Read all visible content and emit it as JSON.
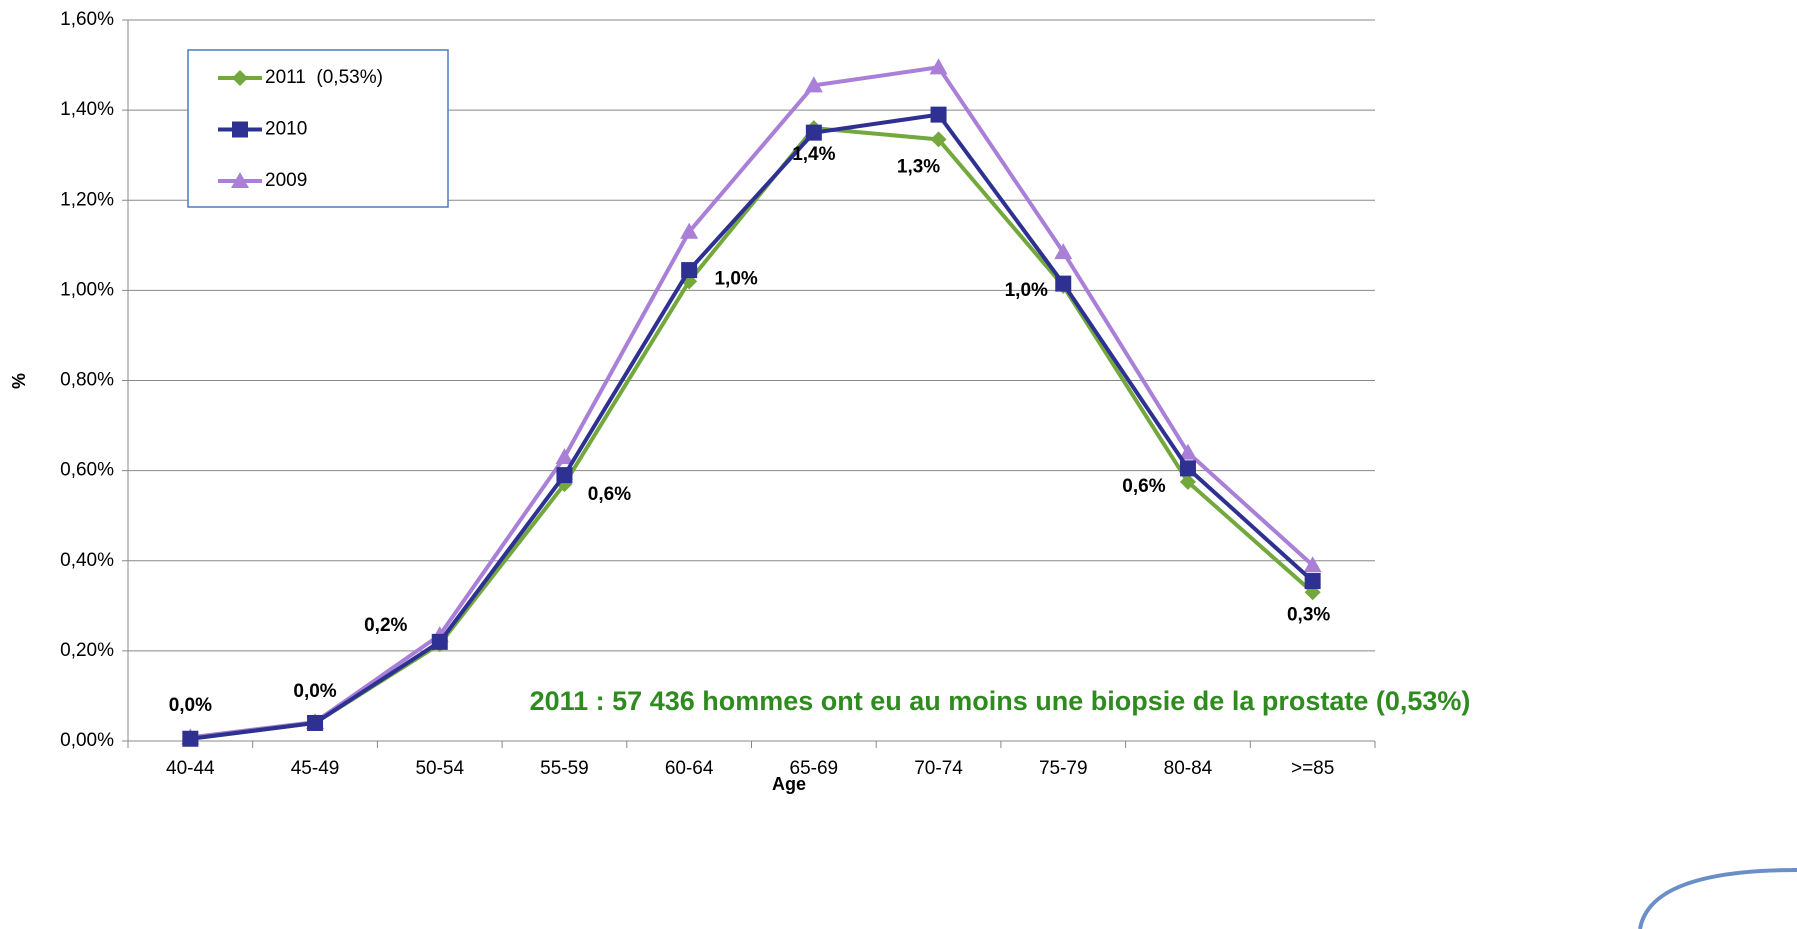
{
  "chart_data": {
    "type": "line",
    "x_label": "Age",
    "y_label": "%",
    "annotation": "2011 : 57 436 hommes ont eu au moins une biopsie de la prostate (0,53%)",
    "categories": [
      "40-44",
      "45-49",
      "50-54",
      "55-59",
      "60-64",
      "65-69",
      "70-74",
      "75-79",
      "80-84",
      ">=85"
    ],
    "series": [
      {
        "name": "2011  (0,53%)",
        "color": "#72a83c",
        "marker": "diamond",
        "values": [
          0.005,
          0.04,
          0.215,
          0.57,
          1.02,
          1.36,
          1.335,
          1.01,
          0.575,
          0.33
        ],
        "value_labels": [
          "0,0%",
          "0,0%",
          "0,2%",
          "0,6%",
          "1,0%",
          "1,4%",
          "1,3%",
          "1,0%",
          "0,6%",
          "0,3%"
        ]
      },
      {
        "name": "2010",
        "color": "#2e3192",
        "marker": "square",
        "values": [
          0.005,
          0.04,
          0.22,
          0.59,
          1.045,
          1.35,
          1.39,
          1.015,
          0.605,
          0.355
        ]
      },
      {
        "name": "2009",
        "color": "#a97fd8",
        "marker": "triangle",
        "values": [
          0.008,
          0.042,
          0.235,
          0.63,
          1.13,
          1.455,
          1.495,
          1.085,
          0.64,
          0.39
        ]
      }
    ],
    "ylim": [
      0,
      1.6
    ],
    "yticks": [
      {
        "value": 0,
        "label": "0,00%"
      },
      {
        "value": 0.2,
        "label": "0,20%"
      },
      {
        "value": 0.4,
        "label": "0,40%"
      },
      {
        "value": 0.6,
        "label": "0,60%"
      },
      {
        "value": 0.8,
        "label": "0,80%"
      },
      {
        "value": 1.0,
        "label": "1,00%"
      },
      {
        "value": 1.2,
        "label": "1,20%"
      },
      {
        "value": 1.4,
        "label": "1,40%"
      },
      {
        "value": 1.6,
        "label": "1,60%"
      }
    ],
    "grid": true,
    "legend": "top-left"
  }
}
